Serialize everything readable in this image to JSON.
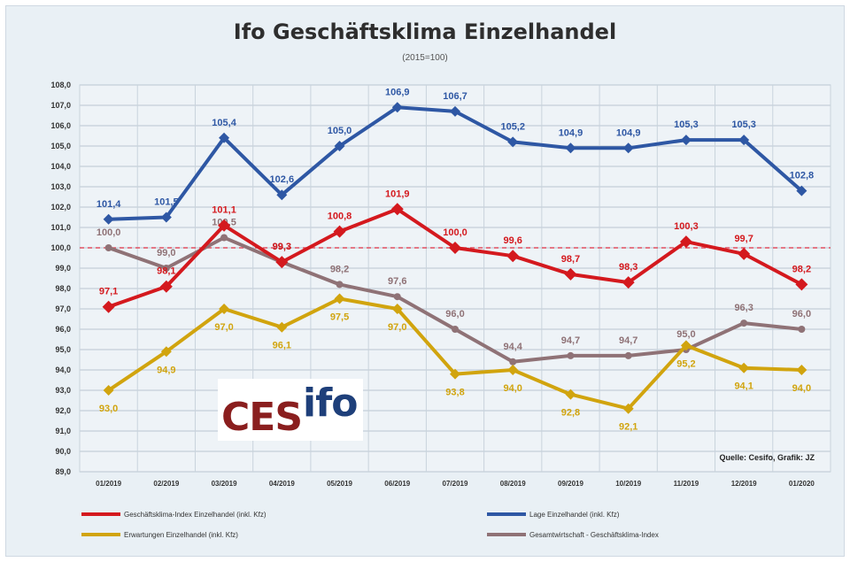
{
  "chart_data": {
    "type": "line",
    "title": "Ifo Geschäftsklima Einzelhandel",
    "subtitle": "(2015=100)",
    "ylim": [
      89,
      108
    ],
    "y_ticks": [
      "108,0",
      "107,0",
      "106,0",
      "105,0",
      "104,0",
      "103,0",
      "102,0",
      "101,0",
      "100,0",
      "99,0",
      "98,0",
      "97,0",
      "96,0",
      "95,0",
      "94,0",
      "93,0",
      "92,0",
      "91,0",
      "90,0",
      "89,0"
    ],
    "categories": [
      "01/2019",
      "02/2019",
      "03/2019",
      "04/2019",
      "05/2019",
      "06/2019",
      "07/2019",
      "08/2019",
      "09/2019",
      "10/2019",
      "11/2019",
      "12/2019",
      "01/2020"
    ],
    "reference_line": 100,
    "grid": true,
    "legend_position": "bottom",
    "series": [
      {
        "name": "Lage Einzelhandel (inkl. Kfz)",
        "color": "#2e57a4",
        "values": [
          101.4,
          101.5,
          105.4,
          102.6,
          105.0,
          106.9,
          106.7,
          105.2,
          104.9,
          104.9,
          105.3,
          105.3,
          102.8
        ],
        "labels": [
          "101,4",
          "101,5",
          "105,4",
          "102,6",
          "105,0",
          "106,9",
          "106,7",
          "105,2",
          "104,9",
          "104,9",
          "105,3",
          "105,3",
          "102,8"
        ]
      },
      {
        "name": "Geschäftsklima-Index Einzelhandel (inkl. Kfz)",
        "color": "#d4191e",
        "values": [
          97.1,
          98.1,
          101.1,
          99.3,
          100.8,
          101.9,
          100.0,
          99.6,
          98.7,
          98.3,
          100.3,
          99.7,
          98.2
        ],
        "labels": [
          "97,1",
          "98,1",
          "101,1",
          "99,3",
          "100,8",
          "101,9",
          "100,0",
          "99,6",
          "98,7",
          "98,3",
          "100,3",
          "99,7",
          "98,2"
        ]
      },
      {
        "name": "Erwartungen Einzelhandel (inkl. Kfz)",
        "color": "#d1a40e",
        "values": [
          93.0,
          94.9,
          97.0,
          96.1,
          97.5,
          97.0,
          93.8,
          94.0,
          92.8,
          92.1,
          95.2,
          94.1,
          94.0
        ],
        "labels": [
          "93,0",
          "94,9",
          "97,0",
          "96,1",
          "97,5",
          "97,0",
          "93,8",
          "94,0",
          "92,8",
          "92,1",
          "95,2",
          "94,1",
          "94,0"
        ]
      },
      {
        "name": "Gesamtwirtschaft - Geschäftsklima-Index",
        "color": "#8f7276",
        "values": [
          100.0,
          99.0,
          100.5,
          99.3,
          98.2,
          97.6,
          96.0,
          94.4,
          94.7,
          94.7,
          95.0,
          96.3,
          96.0
        ],
        "labels": [
          "100,0",
          "99,0",
          "100,5",
          "99,3",
          "98,2",
          "97,6",
          "96,0",
          "94,4",
          "94,7",
          "94,7",
          "95,0",
          "96,3",
          "96,0"
        ]
      }
    ]
  },
  "logo": {
    "part1": "CES",
    "part2": "ifo"
  },
  "source": "Quelle: Cesifo, Grafik: JZ",
  "legend": [
    {
      "label": "Geschäftsklima-Index Einzelhandel (inkl. Kfz)",
      "color": "#d4191e"
    },
    {
      "label": "Lage Einzelhandel (inkl. Kfz)",
      "color": "#2e57a4"
    },
    {
      "label": "Erwartungen Einzelhandel (inkl. Kfz)",
      "color": "#d1a40e"
    },
    {
      "label": "Gesamtwirtschaft - Geschäftsklima-Index",
      "color": "#8f7276"
    }
  ]
}
